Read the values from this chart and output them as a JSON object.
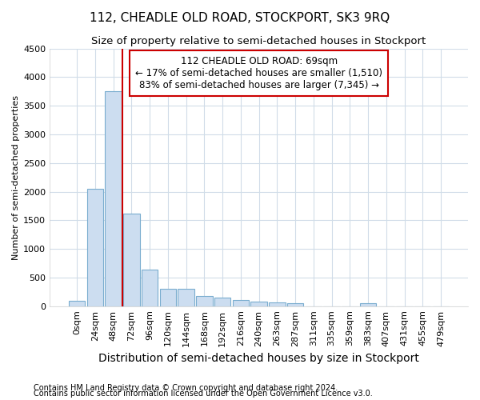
{
  "title": "112, CHEADLE OLD ROAD, STOCKPORT, SK3 9RQ",
  "subtitle": "Size of property relative to semi-detached houses in Stockport",
  "xlabel": "Distribution of semi-detached houses by size in Stockport",
  "ylabel": "Number of semi-detached properties",
  "footnote1": "Contains HM Land Registry data © Crown copyright and database right 2024.",
  "footnote2": "Contains public sector information licensed under the Open Government Licence v3.0.",
  "bar_labels": [
    "0sqm",
    "24sqm",
    "48sqm",
    "72sqm",
    "96sqm",
    "120sqm",
    "144sqm",
    "168sqm",
    "192sqm",
    "216sqm",
    "240sqm",
    "263sqm",
    "287sqm",
    "311sqm",
    "335sqm",
    "359sqm",
    "383sqm",
    "407sqm",
    "431sqm",
    "455sqm",
    "479sqm"
  ],
  "bar_values": [
    90,
    2050,
    3750,
    1620,
    640,
    300,
    300,
    180,
    145,
    105,
    80,
    65,
    45,
    0,
    0,
    0,
    45,
    0,
    0,
    0,
    0
  ],
  "bar_color": "#ccddf0",
  "bar_edge_color": "#7aadcf",
  "annotation_text1": "112 CHEADLE OLD ROAD: 69sqm",
  "annotation_text2": "← 17% of semi-detached houses are smaller (1,510)",
  "annotation_text3": "83% of semi-detached houses are larger (7,345) →",
  "annotation_box_color": "#ffffff",
  "annotation_box_edge": "#cc0000",
  "property_line_color": "#cc0000",
  "ylim": [
    0,
    4500
  ],
  "yticks": [
    0,
    500,
    1000,
    1500,
    2000,
    2500,
    3000,
    3500,
    4000,
    4500
  ],
  "background_color": "#ffffff",
  "grid_color": "#d0dce8",
  "title_fontsize": 11,
  "subtitle_fontsize": 9.5,
  "xlabel_fontsize": 10,
  "ylabel_fontsize": 8,
  "tick_fontsize": 8,
  "annotation_fontsize": 8.5,
  "footnote_fontsize": 7
}
